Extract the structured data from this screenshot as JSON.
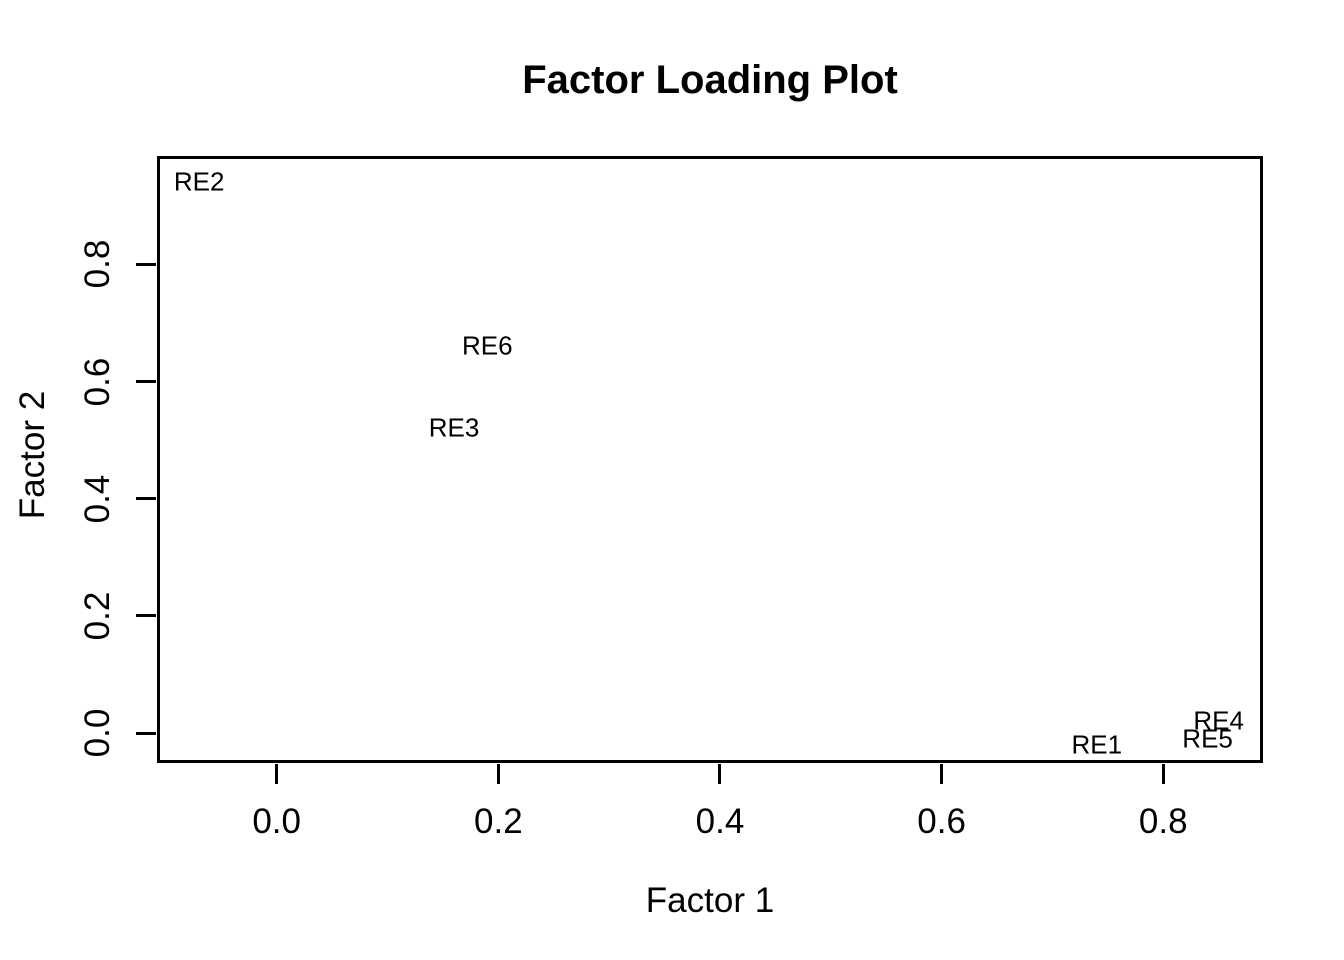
{
  "chart_data": {
    "type": "scatter",
    "title": "Factor Loading Plot",
    "xlabel": "Factor 1",
    "ylabel": "Factor 2",
    "xlim": [
      -0.108,
      0.89
    ],
    "ylim": [
      -0.051,
      0.985
    ],
    "x_ticks": [
      0.0,
      0.2,
      0.4,
      0.6,
      0.8
    ],
    "x_tick_labels": [
      "0.0",
      "0.2",
      "0.4",
      "0.6",
      "0.8"
    ],
    "y_ticks": [
      0.0,
      0.2,
      0.4,
      0.6,
      0.8
    ],
    "y_tick_labels": [
      "0.0",
      "0.2",
      "0.4",
      "0.6",
      "0.8"
    ],
    "grid": false,
    "legend": "none",
    "point_style": "text-labels",
    "points": [
      {
        "label": "RE1",
        "x": 0.74,
        "y": -0.02
      },
      {
        "label": "RE2",
        "x": -0.07,
        "y": 0.94
      },
      {
        "label": "RE3",
        "x": 0.16,
        "y": 0.52
      },
      {
        "label": "RE4",
        "x": 0.85,
        "y": 0.02
      },
      {
        "label": "RE5",
        "x": 0.84,
        "y": -0.01
      },
      {
        "label": "RE6",
        "x": 0.19,
        "y": 0.66
      }
    ],
    "colors": {
      "text": "#000000",
      "box_border": "#000000",
      "background": "#ffffff"
    }
  }
}
